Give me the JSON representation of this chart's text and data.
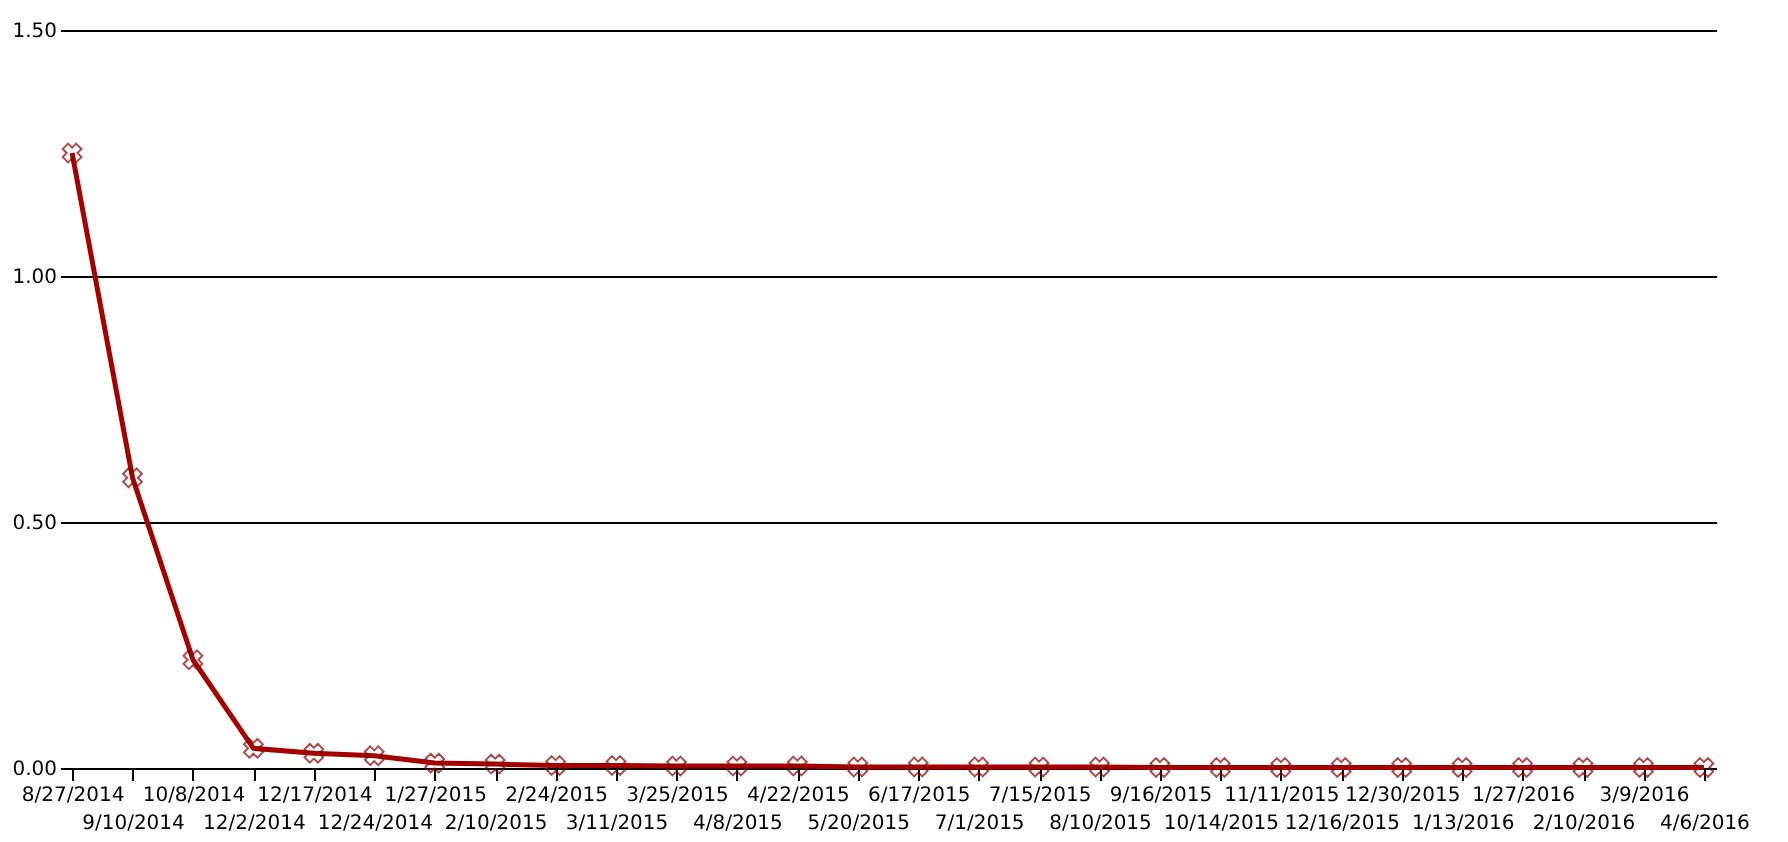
{
  "chart_data": {
    "type": "line",
    "categories": [
      "8/27/2014",
      "9/10/2014",
      "10/8/2014",
      "12/2/2014",
      "12/17/2014",
      "12/24/2014",
      "1/27/2015",
      "2/10/2015",
      "2/24/2015",
      "3/11/2015",
      "3/25/2015",
      "4/8/2015",
      "4/22/2015",
      "5/20/2015",
      "6/17/2015",
      "7/1/2015",
      "7/15/2015",
      "8/10/2015",
      "9/16/2015",
      "10/14/2015",
      "11/11/2015",
      "12/16/2015",
      "12/30/2015",
      "1/13/2016",
      "1/27/2016",
      "2/10/2016",
      "3/9/2016",
      "4/6/2016"
    ],
    "series": [
      {
        "color": "#a50000",
        "values": [
          1.25,
          0.59,
          0.22,
          0.04,
          0.03,
          0.025,
          0.01,
          0.008,
          0.005,
          0.005,
          0.004,
          0.004,
          0.004,
          0.002,
          0.002,
          0.002,
          0.002,
          0.002,
          0.001,
          0.001,
          0.001,
          0.001,
          0.001,
          0.001,
          0.001,
          0.001,
          0.001,
          0.001
        ]
      }
    ],
    "ylim": [
      0,
      1.5
    ],
    "yticks": [
      {
        "value": 0,
        "label": "0.00"
      },
      {
        "value": 0.5,
        "label": "0.50"
      },
      {
        "value": 1,
        "label": "1.00"
      },
      {
        "value": 1.5,
        "label": "1.50"
      }
    ],
    "grid": "y",
    "marker": "cross",
    "line_style": "solid"
  }
}
